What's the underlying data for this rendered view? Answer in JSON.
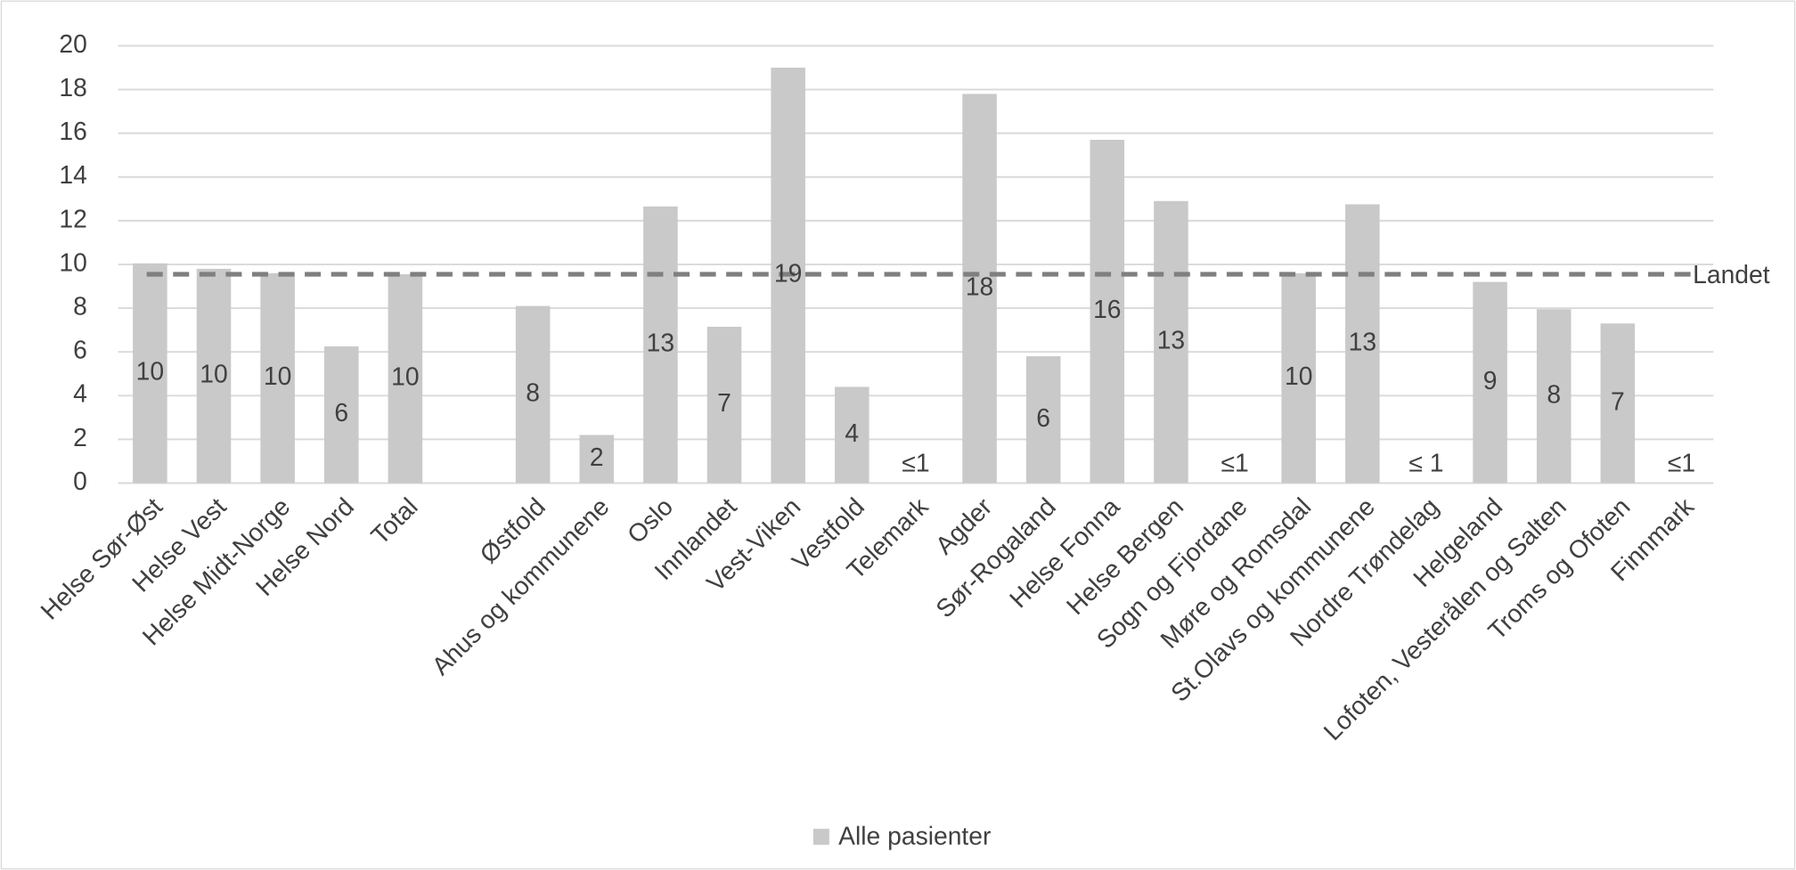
{
  "chart_data": {
    "type": "bar",
    "categories": [
      "Helse Sør-Øst",
      "Helse Vest",
      "Helse Midt-Norge",
      "Helse Nord",
      "Total",
      null,
      "Østfold",
      "Ahus og kommunene",
      "Oslo",
      "Innlandet",
      "Vest-Viken",
      "Vestfold",
      "Telemark",
      "Agder",
      "Sør-Rogaland",
      "Helse Fonna",
      "Helse Bergen",
      "Sogn og Fjordane",
      "Møre og Romsdal",
      "St.Olavs og kommunene",
      "Nordre Trøndelag",
      "Helgeland",
      "Lofoten, Vesterålen og Salten",
      "Troms og Ofoten",
      "Finnmark"
    ],
    "series": [
      {
        "name": "Alle pasienter",
        "color": "#c9c9c9",
        "values": [
          10.05,
          9.8,
          9.6,
          6.25,
          9.55,
          null,
          8.1,
          2.2,
          12.65,
          7.15,
          19.0,
          4.4,
          null,
          17.8,
          5.8,
          15.7,
          12.9,
          null,
          9.6,
          12.75,
          null,
          9.2,
          7.95,
          7.3,
          null
        ],
        "value_labels": [
          "10",
          "10",
          "10",
          "6",
          "10",
          null,
          "8",
          "2",
          "13",
          "7",
          "19",
          "4",
          "≤1",
          "18",
          "6",
          "16",
          "13",
          "≤1",
          "10",
          "13",
          "≤ 1",
          "9",
          "8",
          "7",
          "≤1"
        ]
      }
    ],
    "reference_line": {
      "label": "Landet",
      "value": 9.55,
      "color": "#7f7f7f"
    },
    "ylim": [
      0,
      20
    ],
    "yticks": [
      0,
      2,
      4,
      6,
      8,
      10,
      12,
      14,
      16,
      18,
      20
    ],
    "grid": true,
    "legend": "bottom"
  }
}
